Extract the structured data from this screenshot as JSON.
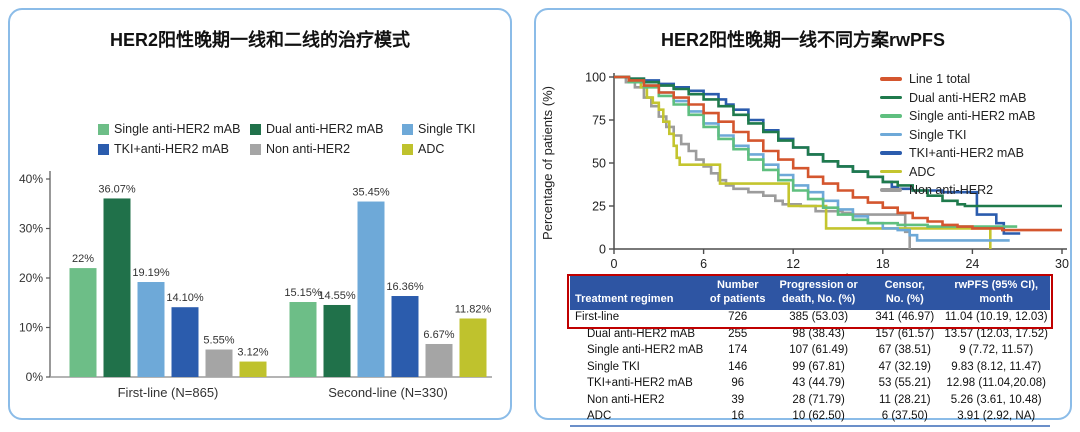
{
  "left_panel": {
    "title": "HER2阳性晚期一线和二线的治疗模式"
  },
  "right_panel": {
    "title": "HER2阳性晚期一线不同方案rwPFS",
    "table": {
      "headers": [
        [
          "Treatment regimen"
        ],
        [
          "Number",
          "of patients"
        ],
        [
          "Progression or",
          "death, No. (%)"
        ],
        [
          "Censor,",
          "No. (%)"
        ],
        [
          "rwPFS (95% CI),",
          "month"
        ]
      ],
      "rows": [
        {
          "regimen": "First-line",
          "indent": false,
          "highlighted": true,
          "n": "726",
          "progression": "385 (53.03)",
          "censor": "341 (46.97)",
          "rwpfs": "11.04 (10.19, 12.03)"
        },
        {
          "regimen": "Dual anti-HER2 mAB",
          "indent": true,
          "highlighted": false,
          "n": "255",
          "progression": "98 (38.43)",
          "censor": "157 (61.57)",
          "rwpfs": "13.57 (12.03, 17.52)"
        },
        {
          "regimen": "Single anti-HER2 mAB",
          "indent": true,
          "highlighted": false,
          "n": "174",
          "progression": "107 (61.49)",
          "censor": "67 (38.51)",
          "rwpfs": "9 (7.72, 11.57)"
        },
        {
          "regimen": "Single TKI",
          "indent": true,
          "highlighted": false,
          "n": "146",
          "progression": "99 (67.81)",
          "censor": "47 (32.19)",
          "rwpfs": "9.83 (8.12, 11.47)"
        },
        {
          "regimen": "TKI+anti-HER2 mAB",
          "indent": true,
          "highlighted": false,
          "n": "96",
          "progression": "43 (44.79)",
          "censor": "53 (55.21)",
          "rwpfs": "12.98 (11.04,20.08)"
        },
        {
          "regimen": "Non anti-HER2",
          "indent": true,
          "highlighted": false,
          "n": "39",
          "progression": "28 (71.79)",
          "censor": "11 (28.21)",
          "rwpfs": "5.26 (3.61, 10.48)"
        },
        {
          "regimen": "ADC",
          "indent": true,
          "highlighted": false,
          "n": "16",
          "progression": "10 (62.50)",
          "censor": "6 (37.50)",
          "rwpfs": "3.91 (2.92, NA)"
        }
      ],
      "header_bg": "#2e55a3",
      "highlight_border_color": "#c00000"
    }
  },
  "chart_data": [
    {
      "type": "bar",
      "title": "HER2阳性晚期一线和二线的治疗模式",
      "categories": [
        "First-line (N=865)",
        "Second-line (N=330)"
      ],
      "series": [
        {
          "name": "Single anti-HER2 mAB",
          "color": "#6dbe87",
          "values": [
            22,
            15.15
          ],
          "labels": [
            "22%",
            "15.15%"
          ]
        },
        {
          "name": "Dual anti-HER2 mAB",
          "color": "#20714a",
          "values": [
            36.07,
            14.55
          ],
          "labels": [
            "36.07%",
            "14.55%"
          ]
        },
        {
          "name": "Single TKI",
          "color": "#6ea9d8",
          "values": [
            19.19,
            35.45
          ],
          "labels": [
            "19.19%",
            "35.45%"
          ]
        },
        {
          "name": "TKI+anti-HER2 mAB",
          "color": "#2b5cad",
          "values": [
            14.1,
            16.36
          ],
          "labels": [
            "14.10%",
            "16.36%"
          ]
        },
        {
          "name": "Non anti-HER2",
          "color": "#a5a5a5",
          "values": [
            5.55,
            6.67
          ],
          "labels": [
            "5.55%",
            "6.67%"
          ]
        },
        {
          "name": "ADC",
          "color": "#bfc22d",
          "values": [
            3.12,
            11.82
          ],
          "labels": [
            "3.12%",
            "11.82%"
          ]
        }
      ],
      "xlabel": "",
      "ylabel": "",
      "ylim": [
        0,
        40
      ],
      "y_tick_values": [
        0,
        10,
        20,
        30,
        40
      ],
      "y_ticks": [
        "0%",
        "10%",
        "20%",
        "30%",
        "40%"
      ],
      "grid": false,
      "legend_position": "top"
    },
    {
      "type": "line",
      "step": true,
      "title": "HER2阳性晚期一线不同方案rwPFS",
      "xlabel": "Months",
      "ylabel": "Percentage of patients (%)",
      "xlim": [
        0,
        30
      ],
      "ylim": [
        0,
        100
      ],
      "x_ticks": [
        0,
        6,
        12,
        18,
        24,
        30
      ],
      "y_ticks": [
        0,
        25,
        50,
        75,
        100
      ],
      "grid": false,
      "legend_position": "top-right-inside",
      "series": [
        {
          "name": "Line 1 total",
          "color": "#d4562e",
          "points": [
            [
              0,
              100
            ],
            [
              1,
              98
            ],
            [
              2,
              95
            ],
            [
              3,
              91
            ],
            [
              4,
              88
            ],
            [
              5,
              84
            ],
            [
              6,
              79
            ],
            [
              7,
              74
            ],
            [
              8,
              68
            ],
            [
              9,
              63
            ],
            [
              10,
              57
            ],
            [
              11,
              52
            ],
            [
              12,
              47
            ],
            [
              13,
              42
            ],
            [
              14,
              38
            ],
            [
              15,
              34
            ],
            [
              16,
              30
            ],
            [
              17,
              27
            ],
            [
              18,
              24
            ],
            [
              19,
              21
            ],
            [
              20,
              18
            ],
            [
              21,
              16
            ],
            [
              22,
              14
            ],
            [
              23,
              13
            ],
            [
              24,
              12
            ],
            [
              26,
              11
            ],
            [
              30,
              11
            ]
          ]
        },
        {
          "name": "Dual anti-HER2 mAB",
          "color": "#1f7a4c",
          "points": [
            [
              0,
              100
            ],
            [
              1,
              99
            ],
            [
              2,
              97
            ],
            [
              3,
              95
            ],
            [
              4,
              93
            ],
            [
              5,
              90
            ],
            [
              6,
              87
            ],
            [
              7,
              83
            ],
            [
              8,
              78
            ],
            [
              9,
              73
            ],
            [
              10,
              68
            ],
            [
              11,
              63
            ],
            [
              12,
              59
            ],
            [
              13,
              55
            ],
            [
              14,
              51
            ],
            [
              15,
              48
            ],
            [
              16,
              45
            ],
            [
              17,
              42
            ],
            [
              18,
              39
            ],
            [
              19,
              37
            ],
            [
              20,
              34
            ],
            [
              21,
              31
            ],
            [
              22,
              28
            ],
            [
              23,
              26
            ],
            [
              23.5,
              25
            ],
            [
              30,
              25
            ]
          ]
        },
        {
          "name": "Single anti-HER2 mAB",
          "color": "#5fbf7f",
          "points": [
            [
              0,
              100
            ],
            [
              1,
              97
            ],
            [
              2,
              94
            ],
            [
              3,
              89
            ],
            [
              4,
              84
            ],
            [
              5,
              78
            ],
            [
              6,
              71
            ],
            [
              7,
              64
            ],
            [
              8,
              58
            ],
            [
              9,
              52
            ],
            [
              10,
              46
            ],
            [
              11,
              40
            ],
            [
              12,
              34
            ],
            [
              13,
              29
            ],
            [
              14,
              24
            ],
            [
              15,
              20
            ],
            [
              16,
              17
            ],
            [
              17,
              15
            ],
            [
              19,
              14
            ],
            [
              21,
              13
            ],
            [
              27,
              13
            ]
          ]
        },
        {
          "name": "Single TKI",
          "color": "#6ea9d8",
          "points": [
            [
              0,
              100
            ],
            [
              1,
              98
            ],
            [
              2,
              95
            ],
            [
              3,
              91
            ],
            [
              4,
              86
            ],
            [
              5,
              80
            ],
            [
              6,
              73
            ],
            [
              7,
              66
            ],
            [
              8,
              60
            ],
            [
              9,
              55
            ],
            [
              10,
              49
            ],
            [
              11,
              43
            ],
            [
              12,
              37
            ],
            [
              13,
              33
            ],
            [
              14,
              28
            ],
            [
              15,
              23
            ],
            [
              16,
              19
            ],
            [
              17,
              15
            ],
            [
              18,
              12
            ],
            [
              19,
              11
            ],
            [
              19.8,
              8
            ],
            [
              20.3,
              5
            ],
            [
              26.5,
              5
            ]
          ]
        },
        {
          "name": "TKI+anti-HER2 mAB",
          "color": "#2b5cad",
          "points": [
            [
              0,
              100
            ],
            [
              1,
              99
            ],
            [
              2,
              98
            ],
            [
              3,
              96
            ],
            [
              4,
              94
            ],
            [
              5,
              92
            ],
            [
              6,
              90
            ],
            [
              7,
              87
            ],
            [
              7.5,
              84
            ],
            [
              8,
              81
            ],
            [
              9,
              75
            ],
            [
              10,
              69
            ],
            [
              11,
              64
            ],
            [
              12,
              59
            ],
            [
              13,
              55
            ],
            [
              14,
              51
            ],
            [
              15,
              48
            ],
            [
              16,
              45
            ],
            [
              17,
              42
            ],
            [
              18,
              39
            ],
            [
              18.6,
              36
            ],
            [
              19,
              35
            ],
            [
              20,
              34
            ],
            [
              22,
              33
            ],
            [
              24,
              33
            ],
            [
              24.3,
              20
            ],
            [
              25.6,
              15
            ],
            [
              26.1,
              9
            ],
            [
              27.2,
              9
            ]
          ]
        },
        {
          "name": "ADC",
          "color": "#c4c52f",
          "points": [
            [
              0,
              100
            ],
            [
              1,
              97
            ],
            [
              1.8,
              94
            ],
            [
              2.2,
              88
            ],
            [
              2.6,
              85
            ],
            [
              3,
              81
            ],
            [
              3.3,
              74
            ],
            [
              3.7,
              67
            ],
            [
              4,
              60
            ],
            [
              4.2,
              53
            ],
            [
              4.4,
              49
            ],
            [
              6.8,
              49
            ],
            [
              7.1,
              38
            ],
            [
              11.4,
              38
            ],
            [
              11.7,
              25
            ],
            [
              13.9,
              25
            ],
            [
              14.2,
              12
            ],
            [
              24.9,
              12
            ],
            [
              25.2,
              0
            ]
          ]
        },
        {
          "name": "Non anti-HER2",
          "color": "#9c9c9c",
          "points": [
            [
              0,
              100
            ],
            [
              0.8,
              97
            ],
            [
              1.4,
              94
            ],
            [
              2,
              88
            ],
            [
              2.5,
              83
            ],
            [
              3,
              77
            ],
            [
              3.5,
              71
            ],
            [
              4,
              66
            ],
            [
              4.5,
              61
            ],
            [
              5,
              57
            ],
            [
              5.5,
              52
            ],
            [
              6,
              48
            ],
            [
              6.5,
              44
            ],
            [
              7,
              40
            ],
            [
              7.5,
              37
            ],
            [
              8,
              35
            ],
            [
              9,
              33
            ],
            [
              10,
              31
            ],
            [
              10.8,
              28
            ],
            [
              11.3,
              26
            ],
            [
              12.5,
              25
            ],
            [
              13.5,
              22
            ],
            [
              15.3,
              21
            ],
            [
              16,
              20
            ],
            [
              19.2,
              20
            ],
            [
              19.5,
              10
            ],
            [
              19.8,
              0
            ]
          ]
        }
      ]
    }
  ]
}
